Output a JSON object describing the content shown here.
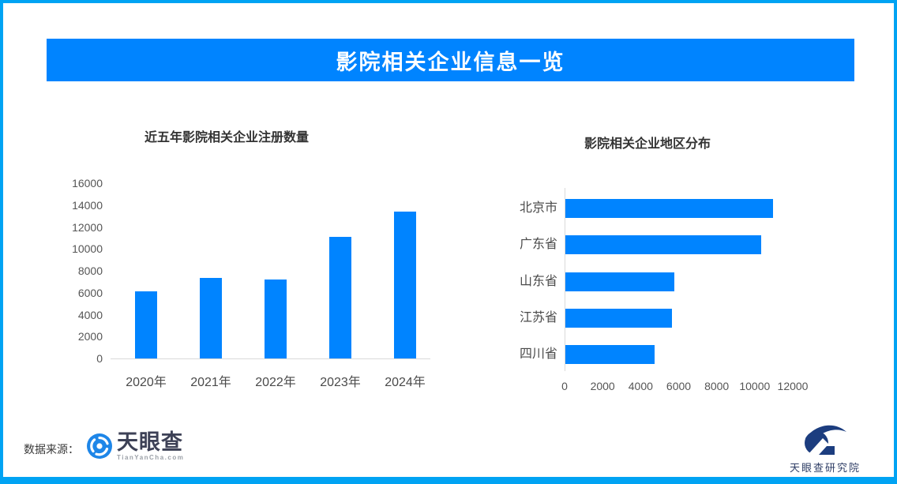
{
  "frame": {
    "border_color": "#00a3f3",
    "background": "#ffffff"
  },
  "banner": {
    "title": "影院相关企业信息一览",
    "bg": "#0084ff",
    "text_color": "#ffffff"
  },
  "chart_data": [
    {
      "type": "bar",
      "orientation": "vertical",
      "title": "近五年影院相关企业注册数量",
      "categories": [
        "2020年",
        "2021年",
        "2022年",
        "2023年",
        "2024年"
      ],
      "values": [
        6100,
        7350,
        7200,
        11100,
        13400
      ],
      "ylim": [
        0,
        16000
      ],
      "yticks": [
        0,
        2000,
        4000,
        6000,
        8000,
        10000,
        12000,
        14000,
        16000
      ],
      "bar_color": "#0084ff",
      "grid": false,
      "legend": false
    },
    {
      "type": "bar",
      "orientation": "horizontal",
      "title": "影院相关企业地区分布",
      "categories": [
        "北京市",
        "广东省",
        "山东省",
        "江苏省",
        "四川省"
      ],
      "values": [
        10900,
        10300,
        5750,
        5600,
        4700
      ],
      "xlim": [
        0,
        12000
      ],
      "xticks": [
        0,
        2000,
        4000,
        6000,
        8000,
        10000,
        12000
      ],
      "bar_color": "#0084ff",
      "grid": false,
      "legend": false
    }
  ],
  "footer": {
    "source_label": "数据来源：",
    "source_logo": {
      "name": "天眼查",
      "domain": "TianYanCha.com"
    },
    "right_logo": {
      "name": "天眼查研究院"
    }
  },
  "colors": {
    "axis_line": "#d9d9d9",
    "tick_text": "#555555",
    "title_text": "#333333"
  }
}
